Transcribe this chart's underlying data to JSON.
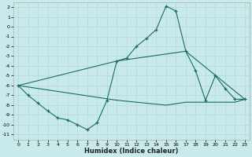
{
  "background_color": "#c8eaea",
  "grid_color": "#b8dada",
  "line_color": "#1a6b6b",
  "xlabel": "Humidex (Indice chaleur)",
  "xlim": [
    -0.5,
    23.5
  ],
  "ylim": [
    -11.5,
    2.5
  ],
  "xticks": [
    0,
    1,
    2,
    3,
    4,
    5,
    6,
    7,
    8,
    9,
    10,
    11,
    12,
    13,
    14,
    15,
    16,
    17,
    18,
    19,
    20,
    21,
    22,
    23
  ],
  "yticks": [
    2,
    1,
    0,
    -1,
    -2,
    -3,
    -4,
    -5,
    -6,
    -7,
    -8,
    -9,
    -10,
    -11
  ],
  "series1_x": [
    0,
    1,
    2,
    3,
    4,
    5,
    6,
    7,
    8,
    9,
    10,
    11,
    12,
    13,
    14,
    15,
    16,
    17,
    18,
    19,
    20,
    21,
    22,
    23
  ],
  "series1_y": [
    -6,
    -7,
    -7.8,
    -8.6,
    -9.3,
    -9.5,
    -10.0,
    -10.5,
    -9.8,
    -7.5,
    -3.5,
    -3.2,
    -2.0,
    -1.2,
    -0.3,
    2.1,
    1.6,
    -2.5,
    -4.5,
    -7.5,
    -5.0,
    -6.3,
    -7.4,
    -7.4
  ],
  "series2_x": [
    0,
    10,
    17,
    23
  ],
  "series2_y": [
    -6.0,
    -3.5,
    -2.5,
    -7.4
  ],
  "series3_x": [
    0,
    10,
    15,
    17,
    19,
    20,
    21,
    22,
    23
  ],
  "series3_y": [
    -6.0,
    -7.5,
    -8.0,
    -7.7,
    -7.7,
    -7.7,
    -7.7,
    -7.7,
    -7.4
  ]
}
